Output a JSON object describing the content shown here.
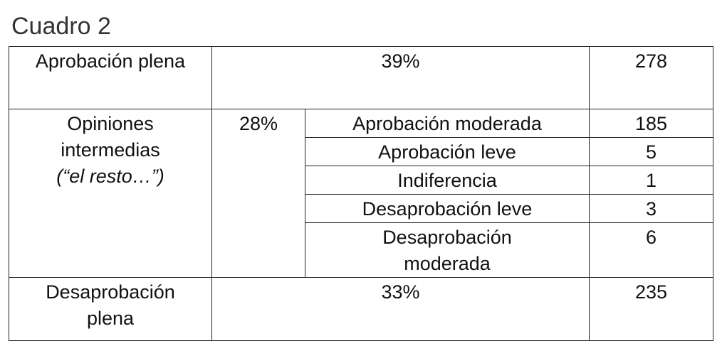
{
  "title": "Cuadro 2",
  "table": {
    "rows": [
      {
        "label": "Aprobación plena",
        "percent": "39%",
        "count": 278
      },
      {
        "label": "Opiniones intermedias",
        "note": "(“el resto…”)",
        "percent": "28%",
        "items": [
          {
            "label": "Aprobación moderada",
            "count": 185
          },
          {
            "label": "Aprobación leve",
            "count": 5
          },
          {
            "label": "Indiferencia",
            "count": 1
          },
          {
            "label": "Desaprobación leve",
            "count": 3
          },
          {
            "label": "Desaprobación moderada",
            "count": 6
          }
        ]
      },
      {
        "label": "Desaprobación plena",
        "percent": "33%",
        "count": 235
      }
    ]
  }
}
